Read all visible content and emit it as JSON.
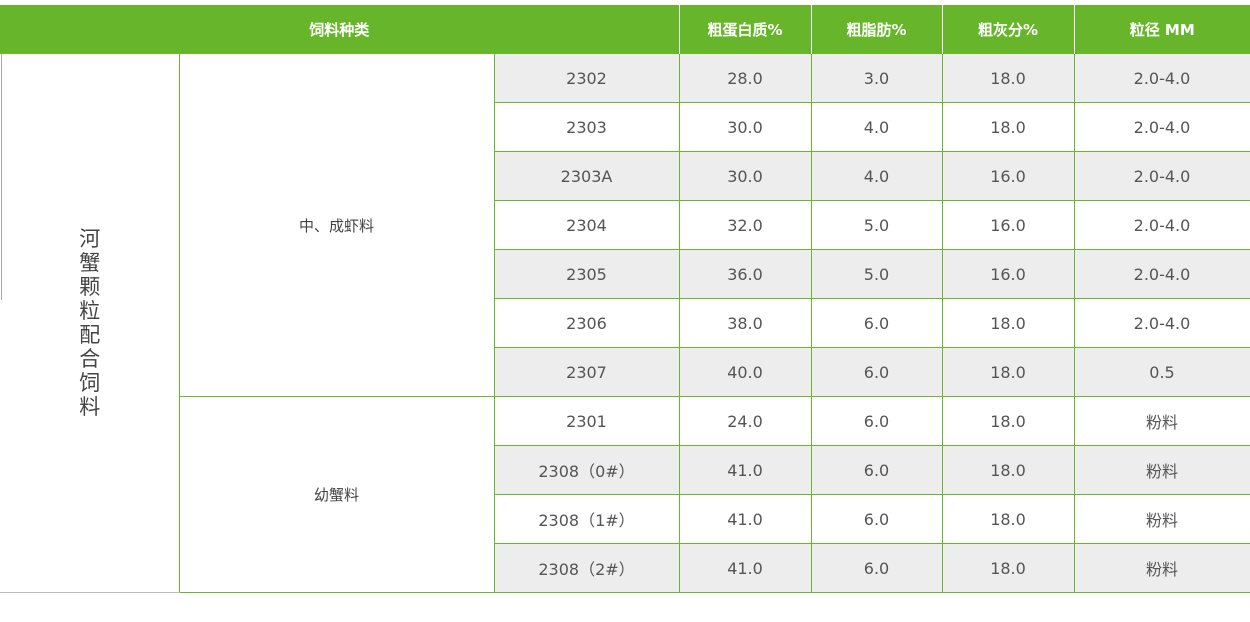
{
  "header": {
    "category": "饲料种类",
    "protein": "粗蛋白质%",
    "fat": "粗脂肪%",
    "ash": "粗灰分%",
    "size": "粒径 MM"
  },
  "main_category": "河蟹颗粒配合饲料",
  "groups": [
    {
      "name": "中、成虾料",
      "rows": [
        {
          "code": "2302",
          "protein": "28.0",
          "fat": "3.0",
          "ash": "18.0",
          "size": "2.0-4.0"
        },
        {
          "code": "2303",
          "protein": "30.0",
          "fat": "4.0",
          "ash": "18.0",
          "size": "2.0-4.0"
        },
        {
          "code": "2303A",
          "protein": "30.0",
          "fat": "4.0",
          "ash": "16.0",
          "size": "2.0-4.0"
        },
        {
          "code": "2304",
          "protein": "32.0",
          "fat": "5.0",
          "ash": "16.0",
          "size": "2.0-4.0"
        },
        {
          "code": "2305",
          "protein": "36.0",
          "fat": "5.0",
          "ash": "16.0",
          "size": "2.0-4.0"
        },
        {
          "code": "2306",
          "protein": "38.0",
          "fat": "6.0",
          "ash": "18.0",
          "size": "2.0-4.0"
        },
        {
          "code": "2307",
          "protein": "40.0",
          "fat": "6.0",
          "ash": "18.0",
          "size": "0.5"
        }
      ]
    },
    {
      "name": "幼蟹料",
      "rows": [
        {
          "code": "2301",
          "protein": "24.0",
          "fat": "6.0",
          "ash": "18.0",
          "size": "粉料"
        },
        {
          "code": "2308（0#）",
          "protein": "41.0",
          "fat": "6.0",
          "ash": "18.0",
          "size": "粉料"
        },
        {
          "code": "2308（1#）",
          "protein": "41.0",
          "fat": "6.0",
          "ash": "18.0",
          "size": "粉料"
        },
        {
          "code": "2308（2#）",
          "protein": "41.0",
          "fat": "6.0",
          "ash": "18.0",
          "size": "粉料"
        }
      ]
    }
  ],
  "colors": {
    "header_bg": "#67b52a",
    "border": "#6cb52e",
    "stripe": "#ededed"
  }
}
